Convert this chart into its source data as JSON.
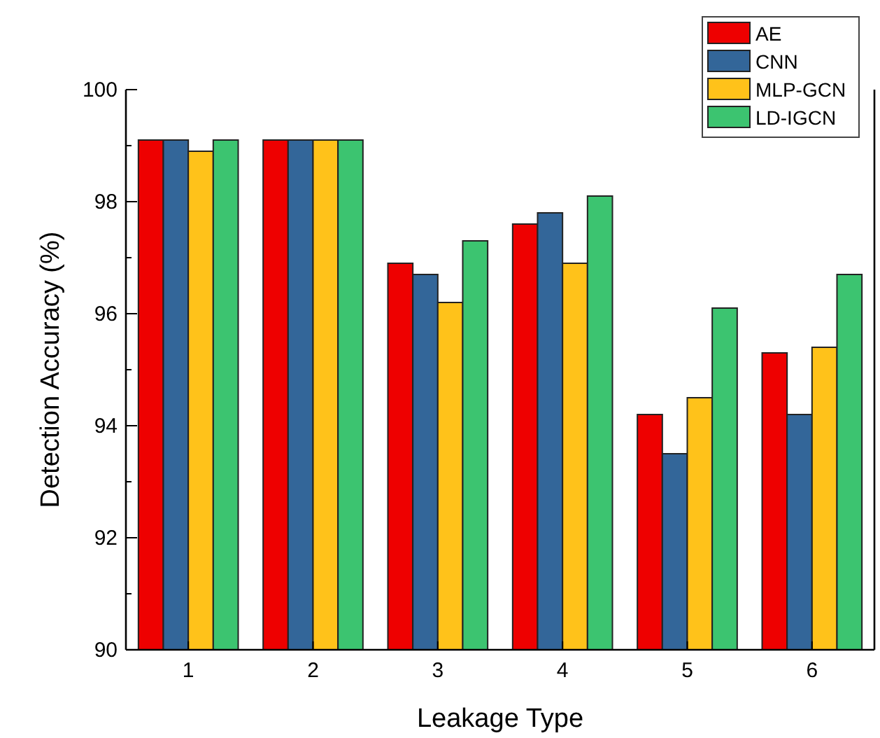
{
  "chart_data": {
    "type": "bar",
    "xlabel": "Leakage Type",
    "ylabel": "Detection Accuracy (%)",
    "categories": [
      "1",
      "2",
      "3",
      "4",
      "5",
      "6"
    ],
    "series": [
      {
        "name": "AE",
        "color": "#ee0000",
        "values": [
          99.1,
          99.1,
          96.9,
          97.6,
          94.2,
          95.3
        ]
      },
      {
        "name": "CNN",
        "color": "#336699",
        "values": [
          99.1,
          99.1,
          96.7,
          97.8,
          93.5,
          94.2
        ]
      },
      {
        "name": "MLP-GCN",
        "color": "#ffc21a",
        "values": [
          98.9,
          99.1,
          96.2,
          96.9,
          94.5,
          95.4
        ]
      },
      {
        "name": "LD-IGCN",
        "color": "#3cc470",
        "values": [
          99.1,
          99.1,
          97.3,
          98.1,
          96.1,
          96.7
        ]
      }
    ],
    "ylim": [
      90,
      100
    ],
    "yticks": [
      90,
      {
        "value": 91,
        "label": null
      },
      92,
      {
        "value": 93,
        "label": null
      },
      94,
      {
        "value": 95,
        "label": null
      },
      96,
      {
        "value": 97,
        "label": null
      },
      98,
      {
        "value": 99,
        "label": null
      },
      100
    ],
    "legend": "top right"
  }
}
